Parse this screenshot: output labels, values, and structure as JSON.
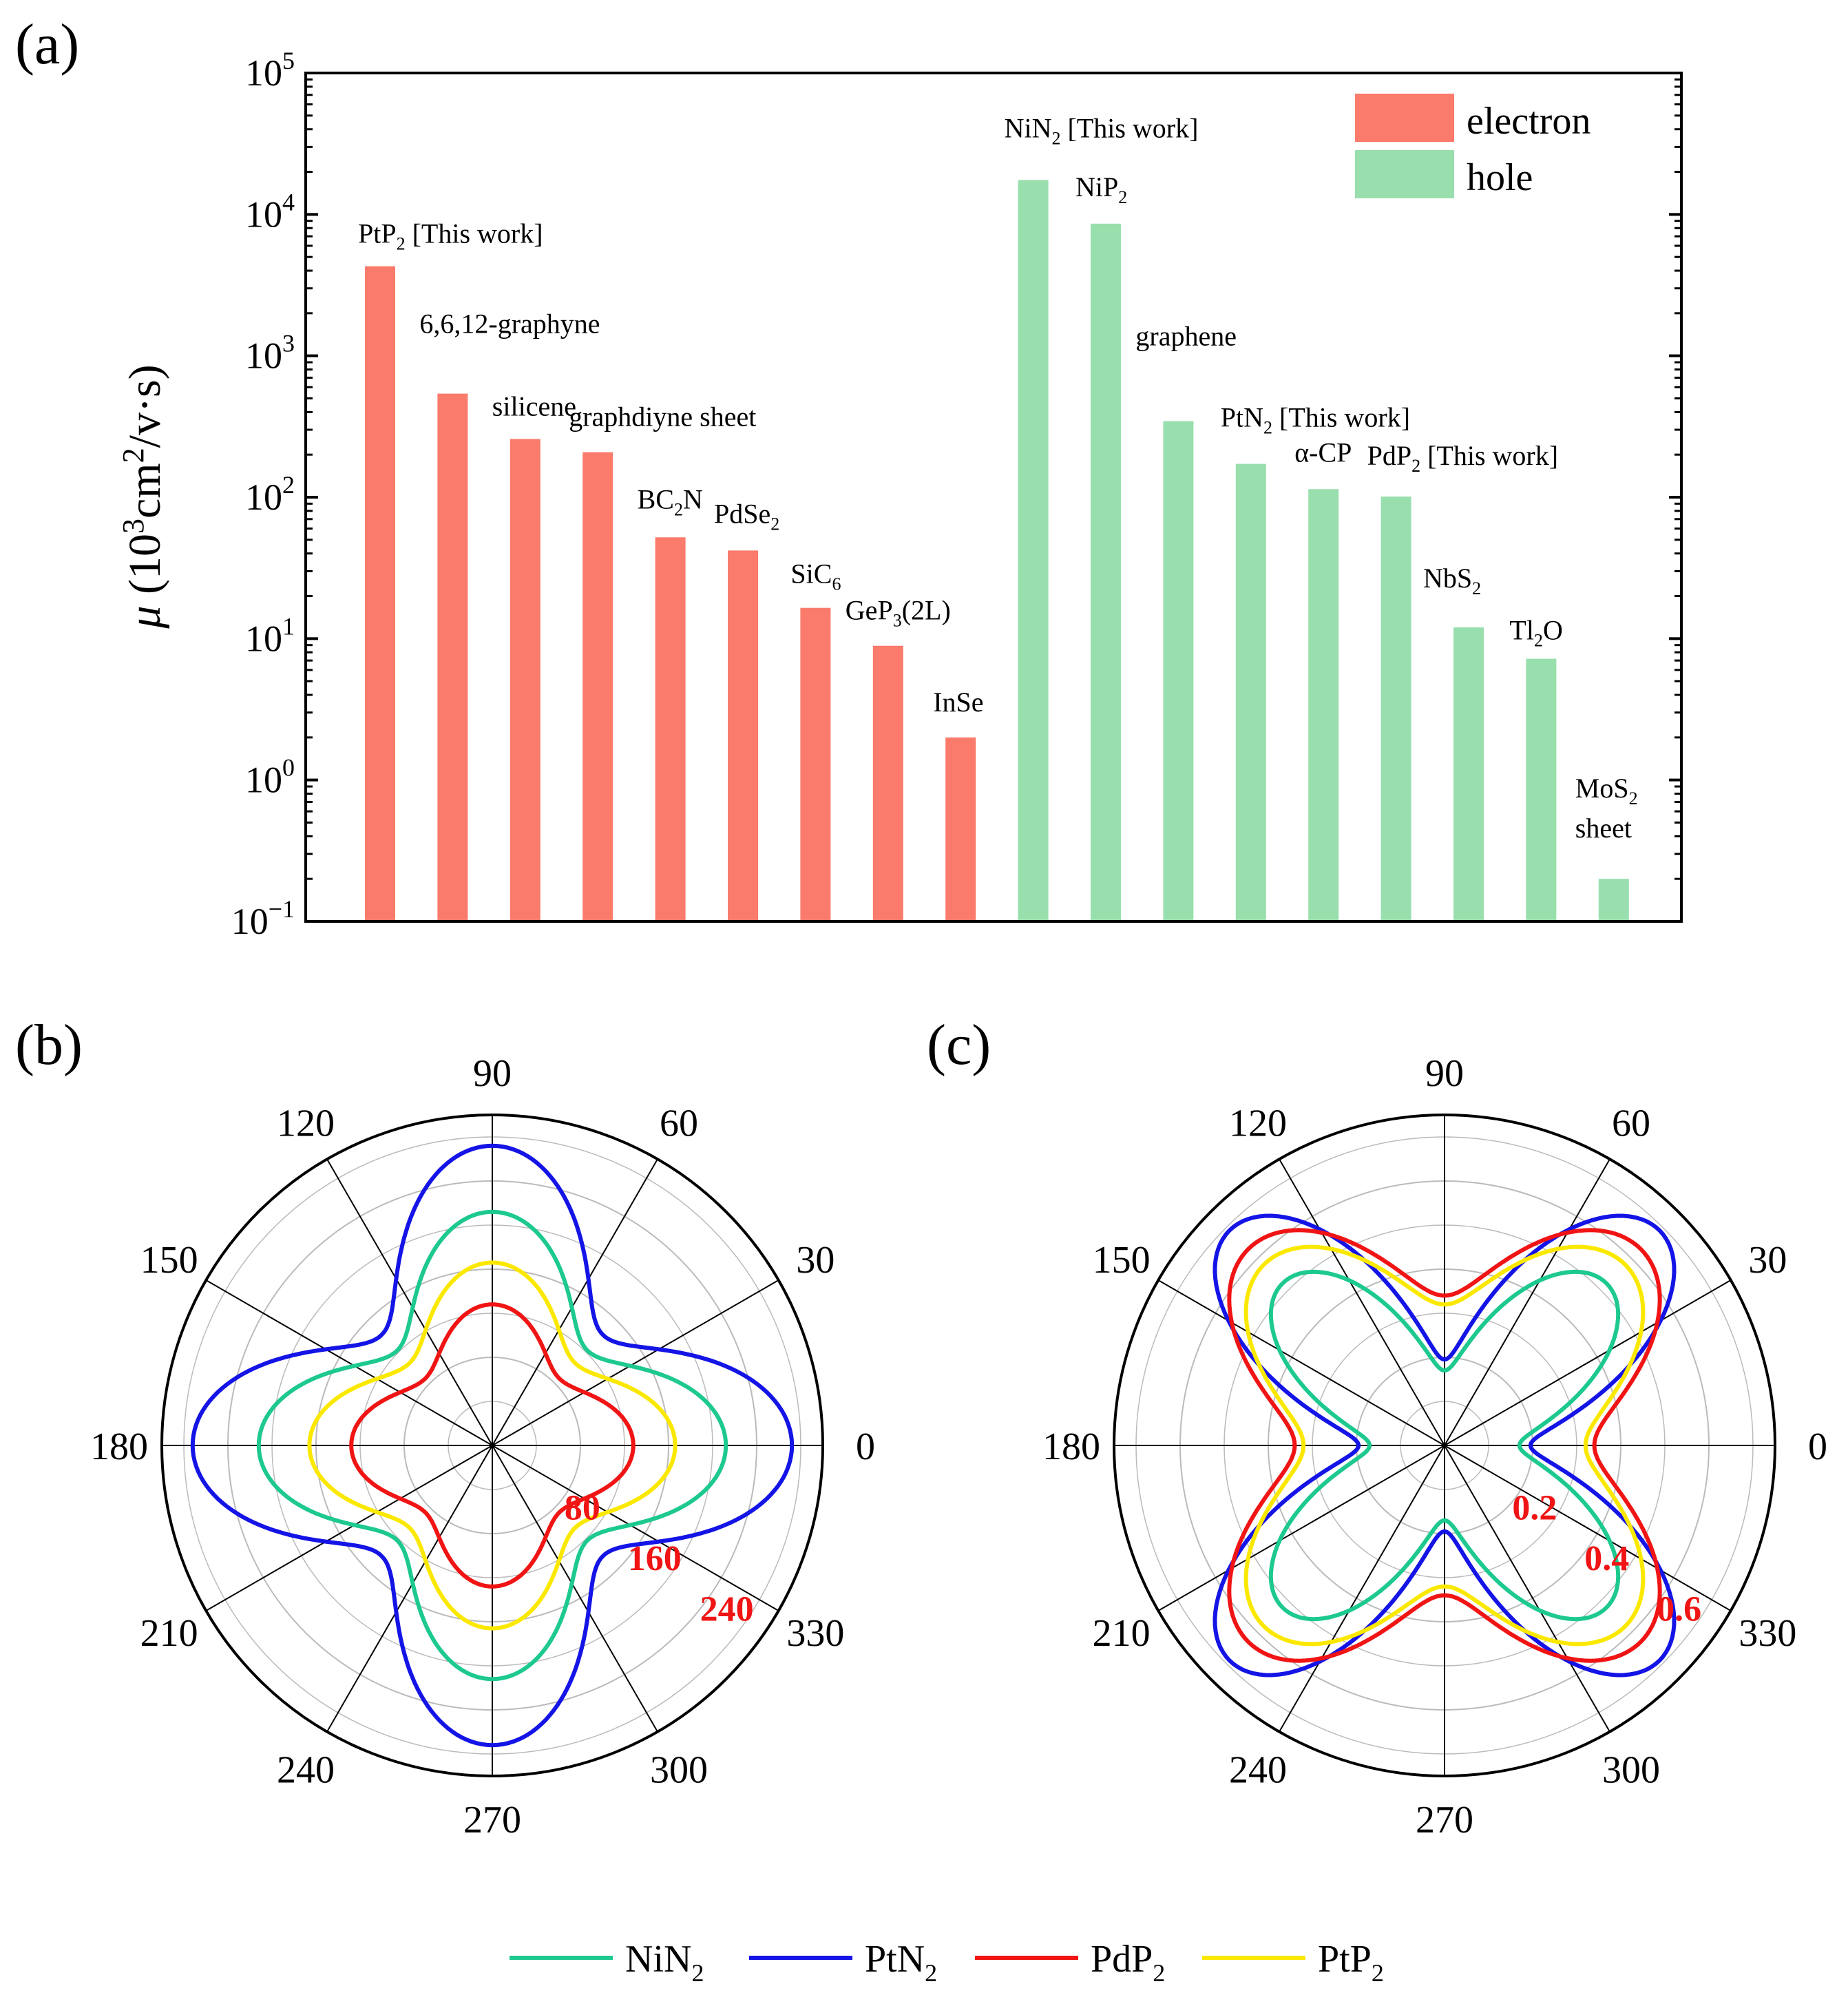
{
  "colors": {
    "electron": "#fa7b6b",
    "hole": "#98dfad",
    "NiN2": "#1dc98e",
    "PtN2": "#1414e6",
    "PdP2": "#f01414",
    "PtP2": "#fbe800",
    "axis": "#000000",
    "grid": "#bbbbbb",
    "red_label": "#f01414"
  },
  "panels": {
    "a": "(a)",
    "b": "(b)",
    "c": "(c)"
  },
  "chart_data": [
    {
      "panel": "(a)",
      "type": "bar",
      "scale": "log",
      "ylabel_parts": [
        "μ",
        " (10",
        "3",
        "cm",
        "2",
        "/v·s)"
      ],
      "ylim": [
        0.1,
        100000
      ],
      "yticks": [
        {
          "base": "10",
          "exp": "5",
          "value": 100000
        },
        {
          "base": "10",
          "exp": "4",
          "value": 10000
        },
        {
          "base": "10",
          "exp": "3",
          "value": 1000
        },
        {
          "base": "10",
          "exp": "2",
          "value": 100
        },
        {
          "base": "10",
          "exp": "1",
          "value": 10
        },
        {
          "base": "10",
          "exp": "0",
          "value": 1
        },
        {
          "base": "10",
          "exp": "−1",
          "value": 0.1
        }
      ],
      "legend": [
        {
          "name": "electron",
          "series": "electron"
        },
        {
          "name": "hole",
          "series": "hole"
        }
      ],
      "legend_position": "top-right",
      "bars": [
        {
          "series": "electron",
          "value": 4300,
          "label": [
            [
              "PtP"
            ],
            [
              "2",
              "sub"
            ],
            [
              " [This work]"
            ]
          ]
        },
        {
          "series": "electron",
          "value": 540,
          "label": [
            [
              "6,6,12-graphyne"
            ]
          ]
        },
        {
          "series": "electron",
          "value": 258,
          "label": [
            [
              "silicene"
            ]
          ]
        },
        {
          "series": "electron",
          "value": 208,
          "label": [
            [
              "graphdiyne sheet"
            ]
          ]
        },
        {
          "series": "electron",
          "value": 52,
          "label": [
            [
              "BC"
            ],
            [
              "2",
              "sub"
            ],
            [
              "N"
            ]
          ]
        },
        {
          "series": "electron",
          "value": 42,
          "label": [
            [
              "PdSe"
            ],
            [
              "2",
              "sub"
            ]
          ]
        },
        {
          "series": "electron",
          "value": 16.5,
          "label": [
            [
              "SiC"
            ],
            [
              "6",
              "sub"
            ]
          ]
        },
        {
          "series": "electron",
          "value": 8.9,
          "label": [
            [
              "GeP"
            ],
            [
              "3",
              "sub"
            ],
            [
              "(2L)"
            ]
          ]
        },
        {
          "series": "electron",
          "value": 2.0,
          "label": [
            [
              "InSe"
            ]
          ]
        },
        {
          "series": "hole",
          "value": 17500,
          "label": [
            [
              "NiN"
            ],
            [
              "2",
              "sub"
            ],
            [
              " [This work]"
            ]
          ]
        },
        {
          "series": "hole",
          "value": 8600,
          "label": [
            [
              "NiP"
            ],
            [
              "2",
              "sub"
            ]
          ]
        },
        {
          "series": "hole",
          "value": 345,
          "label": [
            [
              "graphene"
            ]
          ]
        },
        {
          "series": "hole",
          "value": 172,
          "label": [
            [
              "PtN"
            ],
            [
              "2",
              "sub"
            ],
            [
              " [This work]"
            ]
          ]
        },
        {
          "series": "hole",
          "value": 114,
          "label": [
            [
              "α-CP"
            ]
          ]
        },
        {
          "series": "hole",
          "value": 101,
          "label": [
            [
              "PdP"
            ],
            [
              "2",
              "sub"
            ],
            [
              " [This work]"
            ]
          ]
        },
        {
          "series": "hole",
          "value": 12,
          "label": [
            [
              "NbS"
            ],
            [
              "2",
              "sub"
            ]
          ]
        },
        {
          "series": "hole",
          "value": 7.2,
          "label": [
            [
              "Tl"
            ],
            [
              "2",
              "sub"
            ],
            [
              "O"
            ]
          ]
        },
        {
          "series": "hole",
          "value": 0.2,
          "label": [
            [
              "MoS"
            ],
            [
              "2",
              "sub"
            ]
          ],
          "label2": "sheet"
        }
      ]
    },
    {
      "panel": "(b)",
      "type": "polar-line",
      "rmax": 300,
      "angle_ticks": [
        "0",
        "30",
        "60",
        "90",
        "120",
        "150",
        "180",
        "210",
        "240",
        "270",
        "300",
        "330"
      ],
      "radial_ticks": [
        "80",
        "160",
        "240"
      ],
      "radial_values": [
        80,
        160,
        240
      ],
      "series": [
        {
          "name": "PtN2",
          "r0": 272,
          "r90": 272,
          "r45": 142
        },
        {
          "name": "NiN2",
          "r0": 212,
          "r90": 212,
          "r45": 122
        },
        {
          "name": "PtP2",
          "r0": 166,
          "r90": 166,
          "r45": 106
        },
        {
          "name": "PdP2",
          "r0": 128,
          "r90": 128,
          "r45": 86
        }
      ]
    },
    {
      "panel": "(c)",
      "type": "polar-line",
      "rmax": 0.75,
      "angle_ticks": [
        "0",
        "30",
        "60",
        "90",
        "120",
        "150",
        "180",
        "210",
        "240",
        "270",
        "300",
        "330"
      ],
      "radial_ticks": [
        "0.2",
        "0.4",
        "0.6"
      ],
      "radial_values": [
        0.2,
        0.4,
        0.6
      ],
      "series": [
        {
          "name": "NiN2",
          "r0": 0.17,
          "r90": 0.17,
          "r45": 0.52
        },
        {
          "name": "PtN2",
          "r0": 0.195,
          "r90": 0.195,
          "r45": 0.69
        },
        {
          "name": "PdP2",
          "r0": 0.34,
          "r90": 0.34,
          "r45": 0.63
        },
        {
          "name": "PtP2",
          "r0": 0.32,
          "r90": 0.32,
          "r45": 0.58
        }
      ]
    }
  ],
  "bottom_legend": [
    {
      "series": "NiN2",
      "base": "NiN",
      "sub": "2"
    },
    {
      "series": "PtN2",
      "base": "PtN",
      "sub": "2"
    },
    {
      "series": "PdP2",
      "base": "PdP",
      "sub": "2"
    },
    {
      "series": "PtP2",
      "base": "PtP",
      "sub": "2"
    }
  ]
}
